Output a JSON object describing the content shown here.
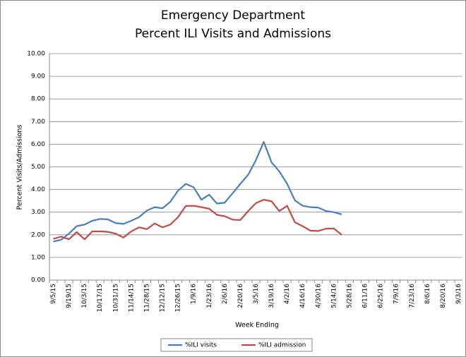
{
  "chart_data": {
    "type": "line",
    "title": [
      "Emergency Department",
      "Percent ILI Visits and Admissions"
    ],
    "x_label": "Week Ending",
    "y_label": "Percent Visits/Admissions",
    "categories": [
      "9/5/15",
      null,
      "9/19/15",
      null,
      "10/3/15",
      null,
      "10/17/15",
      null,
      "10/31/15",
      null,
      "11/14/15",
      null,
      "11/28/15",
      null,
      "12/12/15",
      null,
      "12/26/15",
      null,
      "1/9/16",
      null,
      "1/23/16",
      null,
      "2/6/16",
      null,
      "2/20/16",
      null,
      "3/5/16",
      null,
      "3/19/16",
      null,
      "4/2/16",
      null,
      "4/16/16",
      null,
      "4/30/16",
      null,
      "5/14/16",
      null,
      "5/28/16",
      null,
      "6/11/16",
      null,
      "6/25/16",
      null,
      "7/9/16",
      null,
      "7/23/16",
      null,
      "8/6/16",
      null,
      "8/20/16",
      null,
      "9/3/16"
    ],
    "series": [
      {
        "name": "%ILI visits",
        "color": "#4a7ebb",
        "values": [
          1.7,
          1.78,
          2.05,
          2.38,
          2.45,
          2.62,
          2.7,
          2.68,
          2.52,
          2.48,
          2.62,
          2.78,
          3.07,
          3.22,
          3.17,
          3.45,
          3.95,
          4.25,
          4.1,
          3.55,
          3.77,
          3.38,
          3.42,
          3.83,
          4.25,
          4.65,
          5.3,
          6.1,
          5.2,
          4.8,
          4.25,
          3.52,
          3.28,
          3.22,
          3.2,
          3.05,
          3.0,
          2.9,
          null,
          null,
          null,
          null,
          null,
          null,
          null,
          null,
          null,
          null,
          null,
          null,
          null,
          null,
          null
        ]
      },
      {
        "name": "%ILI admission",
        "color": "#be4b48",
        "values": [
          1.82,
          1.92,
          1.8,
          2.12,
          1.8,
          2.15,
          2.15,
          2.13,
          2.05,
          1.88,
          2.15,
          2.33,
          2.25,
          2.5,
          2.33,
          2.45,
          2.78,
          3.27,
          3.28,
          3.22,
          3.15,
          2.88,
          2.82,
          2.67,
          2.65,
          3.05,
          3.4,
          3.55,
          3.48,
          3.05,
          3.28,
          2.55,
          2.38,
          2.18,
          2.17,
          2.27,
          2.28,
          2.0,
          null,
          null,
          null,
          null,
          null,
          null,
          null,
          null,
          null,
          null,
          null,
          null,
          null,
          null,
          null
        ]
      }
    ],
    "ylim": [
      0,
      10
    ],
    "yticks": [
      {
        "value": 0,
        "label": "0.00"
      },
      {
        "value": 1,
        "label": "1.00"
      },
      {
        "value": 2,
        "label": "2.00"
      },
      {
        "value": 3,
        "label": "3.00"
      },
      {
        "value": 4,
        "label": "4.00"
      },
      {
        "value": 5,
        "label": "5.00"
      },
      {
        "value": 6,
        "label": "6.00"
      },
      {
        "value": 7,
        "label": "7.00"
      },
      {
        "value": 8,
        "label": "8.00"
      },
      {
        "value": 9,
        "label": "9.00"
      },
      {
        "value": 10,
        "label": "10.00"
      }
    ],
    "grid": true,
    "legend": "bottom"
  }
}
